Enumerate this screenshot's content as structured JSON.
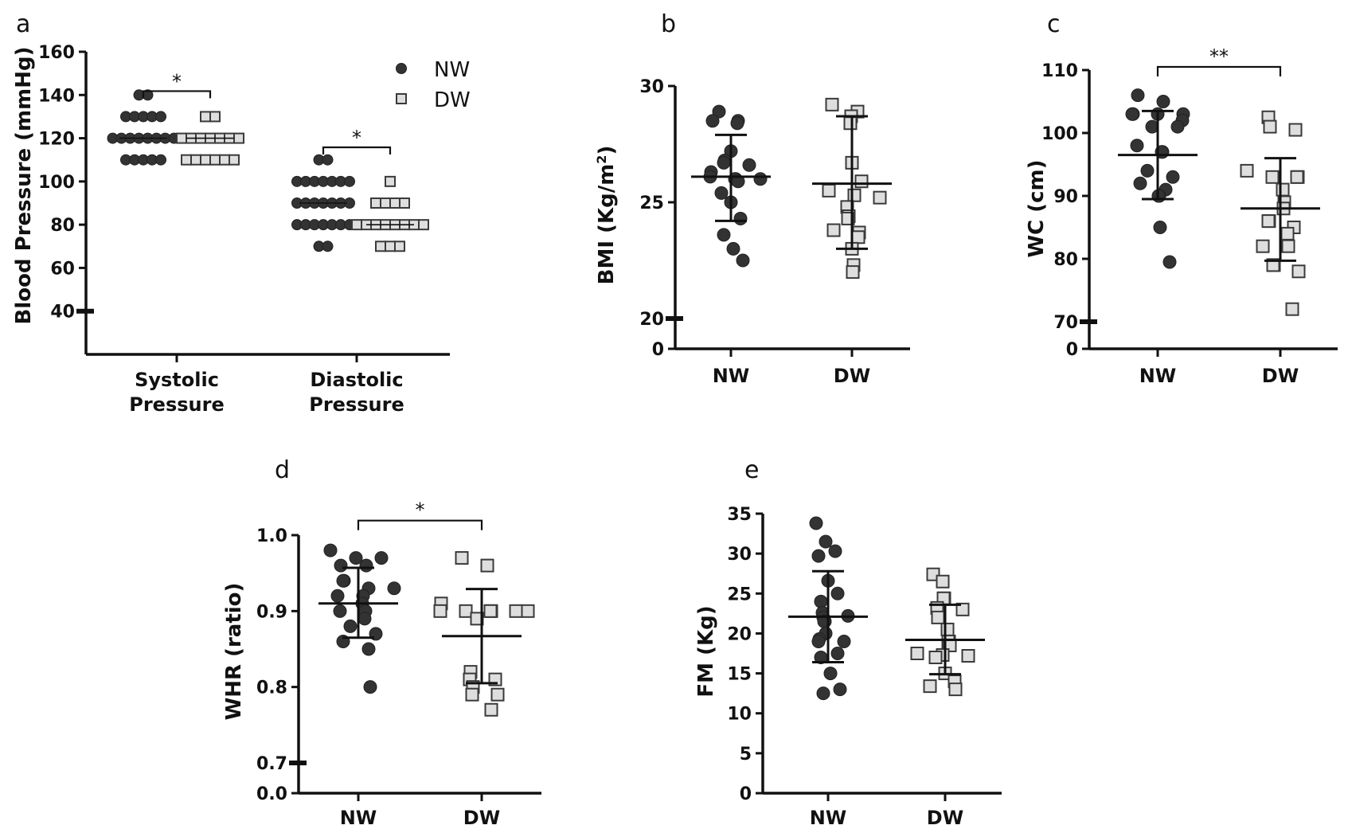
{
  "legend": {
    "nw_label": "NW",
    "dw_label": "DW",
    "nw_color": "#333333",
    "dw_color": "#dedede"
  },
  "chart_data": [
    {
      "id": "a",
      "panel_letter": "a",
      "type": "scatter",
      "ylabel": "Blood Pressure (mmHg)",
      "ylim": [
        20,
        160
      ],
      "yticks": [
        40,
        60,
        80,
        100,
        120,
        140,
        160
      ],
      "categories": [
        "Systolic\nPressure",
        "Diastolic\nPressure"
      ],
      "groups": [
        {
          "category": 0,
          "series": "NW",
          "values": [
            140,
            140,
            130,
            130,
            130,
            130,
            130,
            120,
            120,
            120,
            120,
            120,
            120,
            120,
            120,
            110,
            110,
            110,
            110,
            110
          ],
          "center": 120
        },
        {
          "category": 0,
          "series": "DW",
          "values": [
            130,
            130,
            120,
            120,
            120,
            120,
            120,
            120,
            120,
            110,
            110,
            110,
            110,
            110,
            110
          ],
          "center": 120
        },
        {
          "category": 1,
          "series": "NW",
          "values": [
            110,
            110,
            100,
            100,
            100,
            100,
            100,
            100,
            100,
            90,
            90,
            90,
            90,
            90,
            90,
            90,
            80,
            80,
            80,
            80,
            80,
            80,
            80,
            70,
            70
          ],
          "center": 90
        },
        {
          "category": 1,
          "series": "DW",
          "values": [
            100,
            90,
            90,
            90,
            90,
            80,
            80,
            80,
            80,
            80,
            80,
            80,
            80,
            70,
            70,
            70
          ],
          "center": 80
        }
      ],
      "significance": [
        {
          "category": 0,
          "level": 130,
          "label": "*"
        },
        {
          "category": 1,
          "level": 104,
          "label": "*"
        }
      ]
    },
    {
      "id": "b",
      "panel_letter": "b",
      "type": "scatter",
      "ylabel": "BMI (Kg/m",
      "ylabel_sup": "2",
      "ylabel_end": ")",
      "ylim": [
        0,
        30
      ],
      "yticks": [
        0,
        20,
        25,
        30
      ],
      "axis_break": [
        0,
        20
      ],
      "categories": [
        "NW",
        "DW"
      ],
      "groups": [
        {
          "series": "NW",
          "values": [
            28.9,
            28.4,
            28.5,
            28.5,
            27.2,
            26.8,
            26.7,
            26.6,
            26.3,
            26.1,
            26.0,
            26.0,
            26.0,
            25.9,
            25.4,
            25.0,
            24.3,
            23.6,
            23.0,
            22.5
          ],
          "mean": 26.1,
          "sd_upper": 27.9,
          "sd_lower": 24.2
        },
        {
          "series": "DW",
          "values": [
            29.2,
            28.9,
            28.7,
            28.4,
            26.7,
            25.9,
            25.5,
            25.3,
            25.2,
            24.8,
            24.4,
            24.3,
            23.8,
            23.7,
            23.5,
            23.0,
            22.3,
            22.0
          ],
          "mean": 25.8,
          "sd_upper": 28.7,
          "sd_lower": 23.0
        }
      ],
      "significance": []
    },
    {
      "id": "c",
      "panel_letter": "c",
      "type": "scatter",
      "ylabel": "WC (cm)",
      "ylim": [
        0,
        110
      ],
      "yticks": [
        0,
        70,
        80,
        90,
        100,
        110
      ],
      "axis_break": [
        0,
        70
      ],
      "categories": [
        "NW",
        "DW"
      ],
      "groups": [
        {
          "series": "NW",
          "values": [
            106,
            105,
            103,
            103,
            103,
            103,
            102,
            101,
            101,
            98,
            97,
            97,
            94,
            93,
            92,
            91,
            90,
            90,
            85,
            79.5
          ],
          "mean": 96.5,
          "sd_upper": 103.5,
          "sd_lower": 89.5
        },
        {
          "series": "DW",
          "values": [
            102.5,
            101,
            100.5,
            94,
            93,
            93,
            93,
            91,
            89,
            88,
            86,
            86,
            85,
            84,
            82,
            82,
            79,
            79,
            78,
            72
          ],
          "mean": 88,
          "sd_upper": 96,
          "sd_lower": 79.7
        }
      ],
      "significance": [
        {
          "level": 110,
          "label": "**"
        }
      ]
    },
    {
      "id": "d",
      "panel_letter": "d",
      "type": "scatter",
      "ylabel": "WHR (ratio)",
      "ylim": [
        0,
        1.0
      ],
      "yticks": [
        0,
        0.7,
        0.8,
        0.9,
        1.0
      ],
      "ytick_labels": [
        "0.0",
        "0.7",
        "0.8",
        "0.9",
        "1.0"
      ],
      "axis_break": [
        0,
        0.7
      ],
      "categories": [
        "NW",
        "DW"
      ],
      "groups": [
        {
          "series": "NW",
          "values": [
            0.98,
            0.97,
            0.97,
            0.96,
            0.96,
            0.94,
            0.94,
            0.93,
            0.93,
            0.92,
            0.92,
            0.91,
            0.9,
            0.9,
            0.89,
            0.88,
            0.87,
            0.86,
            0.85,
            0.8
          ],
          "mean": 0.91,
          "sd_upper": 0.957,
          "sd_lower": 0.865
        },
        {
          "series": "DW",
          "values": [
            0.97,
            0.96,
            0.91,
            0.9,
            0.9,
            0.9,
            0.9,
            0.9,
            0.9,
            0.89,
            0.82,
            0.81,
            0.81,
            0.8,
            0.79,
            0.79,
            0.77
          ],
          "mean": 0.867,
          "sd_upper": 0.929,
          "sd_lower": 0.805
        }
      ],
      "significance": [
        {
          "level": 1.015,
          "label": "*"
        }
      ]
    },
    {
      "id": "e",
      "panel_letter": "e",
      "type": "scatter",
      "ylabel": "FM (Kg)",
      "ylim": [
        0,
        35
      ],
      "yticks": [
        0,
        5,
        10,
        15,
        20,
        25,
        30,
        35
      ],
      "categories": [
        "NW",
        "DW"
      ],
      "groups": [
        {
          "series": "NW",
          "values": [
            33.8,
            31.5,
            30.3,
            29.7,
            26.6,
            25.0,
            24.0,
            22.6,
            22.2,
            22.0,
            21.5,
            21.5,
            20.0,
            19.3,
            19.0,
            19.0,
            17.5,
            17.0,
            15.0,
            13.0,
            12.5
          ],
          "mean": 22.1,
          "sd_upper": 27.8,
          "sd_lower": 16.4
        },
        {
          "series": "DW",
          "values": [
            27.4,
            26.5,
            24.4,
            24.4,
            23.2,
            23.0,
            22.0,
            20.5,
            19.0,
            19.0,
            18.5,
            17.5,
            17.3,
            17.2,
            17.0,
            15.0,
            14.0,
            13.4,
            13.0
          ],
          "mean": 19.2,
          "sd_upper": 23.6,
          "sd_lower": 14.9
        }
      ],
      "significance": []
    }
  ]
}
